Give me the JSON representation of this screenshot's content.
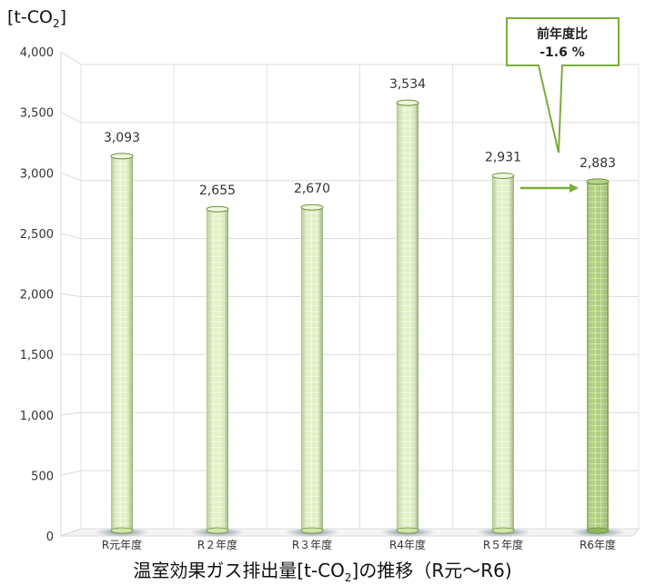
{
  "unit_label": {
    "before": "[t-CO",
    "sub": "2",
    "after": "]"
  },
  "title": {
    "before": "温室効果ガス排出量[t-CO",
    "sub": "2",
    "after": "]の推移（R元～R6)"
  },
  "callout": {
    "line1": "前年度比",
    "line2": "-1.6 %"
  },
  "colors": {
    "bar": "#cfe6a8",
    "bar_highlight": "#8fb85a",
    "arrow": "#7aad3a",
    "grid": "#d9d9d9"
  },
  "chart_data": {
    "type": "bar",
    "categories": [
      "R元年度",
      "R２年度",
      "R３年度",
      "R4年度",
      "R５年度",
      "R6年度"
    ],
    "values": [
      3093,
      2655,
      2670,
      3534,
      2931,
      2883
    ],
    "value_labels": [
      "3,093",
      "2,655",
      "2,670",
      "3,534",
      "2,931",
      "2,883"
    ],
    "ylim": [
      0,
      4000
    ],
    "yticks": [
      0,
      500,
      1000,
      1500,
      2000,
      2500,
      3000,
      3500,
      4000
    ],
    "ytick_labels": [
      "0",
      "500",
      "1,000",
      "1,500",
      "2,000",
      "2,500",
      "3,000",
      "3,500",
      "4,000"
    ],
    "highlight_index": 5,
    "grid": true
  }
}
